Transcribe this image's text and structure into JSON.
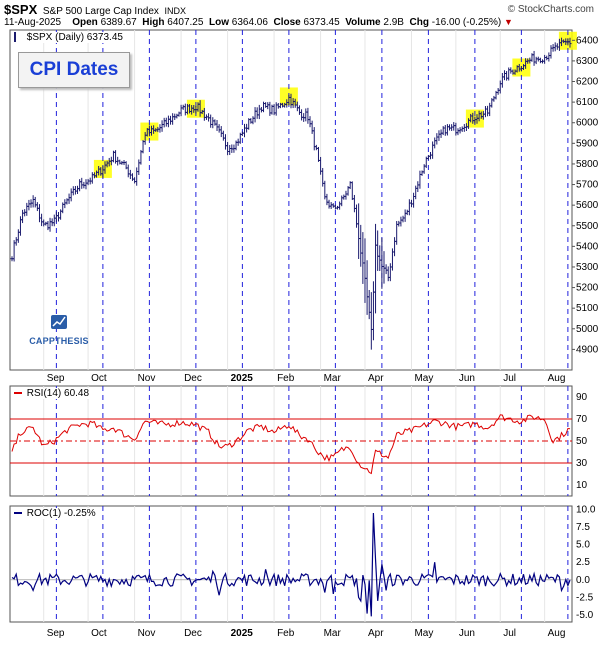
{
  "header": {
    "symbol": "$SPX",
    "name": "S&P 500 Large Cap Index",
    "exchange": "INDX",
    "watermark": "© StockCharts.com",
    "date": "11-Aug-2025",
    "open_label": "Open",
    "open": "6389.67",
    "high_label": "High",
    "high": "6407.25",
    "low_label": "Low",
    "low": "6364.06",
    "close_label": "Close",
    "close": "6373.45",
    "volume_label": "Volume",
    "volume": "2.9B",
    "chg_label": "Chg",
    "chg": "-16.00 (-0.25%)"
  },
  "main_panel": {
    "legend": "$SPX (Daily) 6373.45",
    "callout": "CPI Dates",
    "logo_text": "CAPPTHESIS"
  },
  "rsi_panel": {
    "legend": "RSI(14) 60.48"
  },
  "roc_panel": {
    "legend": "ROC(1) -0.25%"
  },
  "colors": {
    "price_bars": "#1a1a6e",
    "cpi_lines": "#2222dd",
    "highlight": "#ffff00",
    "rsi": "#dd0000",
    "roc": "#000080",
    "callout_text": "#1a3fd6"
  },
  "chart_data": [
    {
      "type": "ohlc",
      "title": "$SPX (Daily)",
      "ylim": [
        4800,
        6450
      ],
      "yticks": [
        4900,
        5000,
        5100,
        5200,
        5300,
        5400,
        5500,
        5600,
        5700,
        5800,
        5900,
        6000,
        6100,
        6200,
        6300,
        6400
      ],
      "x_month_labels": [
        "Sep",
        "Oct",
        "Nov",
        "Dec",
        "2025",
        "Feb",
        "Mar",
        "Apr",
        "May",
        "Jun",
        "Jul",
        "Aug"
      ],
      "x_month_index": [
        15,
        36,
        58,
        80,
        102,
        124,
        146,
        167,
        189,
        210,
        231,
        252
      ],
      "cpi_date_index": [
        21,
        43,
        65,
        87,
        109,
        131,
        153,
        175,
        197,
        219,
        241,
        263
      ],
      "highlight_date_index": [
        43,
        65,
        87,
        131,
        219,
        241,
        263
      ],
      "price_keypoints": [
        [
          0,
          5360
        ],
        [
          5,
          5560
        ],
        [
          10,
          5620
        ],
        [
          15,
          5500
        ],
        [
          20,
          5520
        ],
        [
          26,
          5620
        ],
        [
          32,
          5700
        ],
        [
          38,
          5730
        ],
        [
          43,
          5780
        ],
        [
          48,
          5840
        ],
        [
          54,
          5780
        ],
        [
          58,
          5720
        ],
        [
          63,
          5950
        ],
        [
          68,
          5960
        ],
        [
          73,
          6000
        ],
        [
          80,
          6060
        ],
        [
          87,
          6080
        ],
        [
          93,
          6020
        ],
        [
          98,
          5950
        ],
        [
          102,
          5880
        ],
        [
          106,
          5900
        ],
        [
          112,
          6000
        ],
        [
          118,
          6080
        ],
        [
          124,
          6060
        ],
        [
          128,
          6090
        ],
        [
          131,
          6120
        ],
        [
          136,
          6050
        ],
        [
          140,
          6030
        ],
        [
          144,
          5860
        ],
        [
          148,
          5630
        ],
        [
          152,
          5580
        ],
        [
          156,
          5620
        ],
        [
          160,
          5700
        ],
        [
          164,
          5450
        ],
        [
          168,
          5150
        ],
        [
          170,
          4980
        ],
        [
          172,
          5400
        ],
        [
          175,
          5300
        ],
        [
          178,
          5250
        ],
        [
          182,
          5500
        ],
        [
          186,
          5550
        ],
        [
          190,
          5650
        ],
        [
          195,
          5800
        ],
        [
          200,
          5900
        ],
        [
          205,
          5970
        ],
        [
          210,
          5970
        ],
        [
          215,
          6000
        ],
        [
          219,
          6030
        ],
        [
          225,
          6050
        ],
        [
          231,
          6200
        ],
        [
          236,
          6250
        ],
        [
          241,
          6280
        ],
        [
          246,
          6310
        ],
        [
          252,
          6320
        ],
        [
          258,
          6370
        ],
        [
          263,
          6390
        ]
      ]
    },
    {
      "type": "line",
      "title": "RSI(14)",
      "ylim": [
        0,
        100
      ],
      "yticks": [
        10,
        30,
        50,
        70,
        90
      ],
      "reference_lines": [
        30,
        50,
        70
      ],
      "last": 60.48,
      "rsi_keypoints": [
        [
          0,
          40
        ],
        [
          4,
          58
        ],
        [
          10,
          62
        ],
        [
          15,
          45
        ],
        [
          20,
          50
        ],
        [
          26,
          60
        ],
        [
          32,
          65
        ],
        [
          38,
          66
        ],
        [
          43,
          60
        ],
        [
          48,
          62
        ],
        [
          54,
          55
        ],
        [
          58,
          52
        ],
        [
          63,
          68
        ],
        [
          68,
          66
        ],
        [
          73,
          65
        ],
        [
          80,
          67
        ],
        [
          87,
          65
        ],
        [
          93,
          58
        ],
        [
          98,
          45
        ],
        [
          102,
          45
        ],
        [
          106,
          50
        ],
        [
          112,
          60
        ],
        [
          118,
          63
        ],
        [
          124,
          58
        ],
        [
          128,
          62
        ],
        [
          131,
          65
        ],
        [
          136,
          55
        ],
        [
          140,
          52
        ],
        [
          144,
          42
        ],
        [
          148,
          35
        ],
        [
          152,
          35
        ],
        [
          156,
          42
        ],
        [
          160,
          45
        ],
        [
          164,
          30
        ],
        [
          168,
          24
        ],
        [
          170,
          22
        ],
        [
          172,
          40
        ],
        [
          175,
          38
        ],
        [
          178,
          35
        ],
        [
          182,
          55
        ],
        [
          186,
          58
        ],
        [
          190,
          60
        ],
        [
          195,
          64
        ],
        [
          200,
          68
        ],
        [
          205,
          66
        ],
        [
          210,
          63
        ],
        [
          215,
          64
        ],
        [
          219,
          66
        ],
        [
          225,
          62
        ],
        [
          231,
          72
        ],
        [
          236,
          70
        ],
        [
          241,
          68
        ],
        [
          246,
          72
        ],
        [
          252,
          70
        ],
        [
          256,
          50
        ],
        [
          260,
          55
        ],
        [
          263,
          60
        ]
      ]
    },
    {
      "type": "line",
      "title": "ROC(1)",
      "ylim": [
        -6,
        10.5
      ],
      "yticks": [
        -5.0,
        -2.5,
        0.0,
        2.5,
        5.0,
        7.5,
        10.0
      ],
      "last": -0.25,
      "roc_spikes": [
        [
          164,
          -2.5
        ],
        [
          165,
          -3
        ],
        [
          168,
          -4.8
        ],
        [
          170,
          -5.2
        ],
        [
          171,
          9.5
        ],
        [
          172,
          3.0
        ],
        [
          173,
          -3.0
        ],
        [
          175,
          2.2
        ],
        [
          177,
          -1.5
        ],
        [
          152,
          -2.0
        ],
        [
          148,
          -1.8
        ],
        [
          200,
          2.5
        ],
        [
          98,
          -2.2
        ],
        [
          95,
          1.2
        ],
        [
          10,
          -1.5
        ],
        [
          120,
          1.5
        ],
        [
          260,
          -1.5
        ]
      ]
    }
  ]
}
